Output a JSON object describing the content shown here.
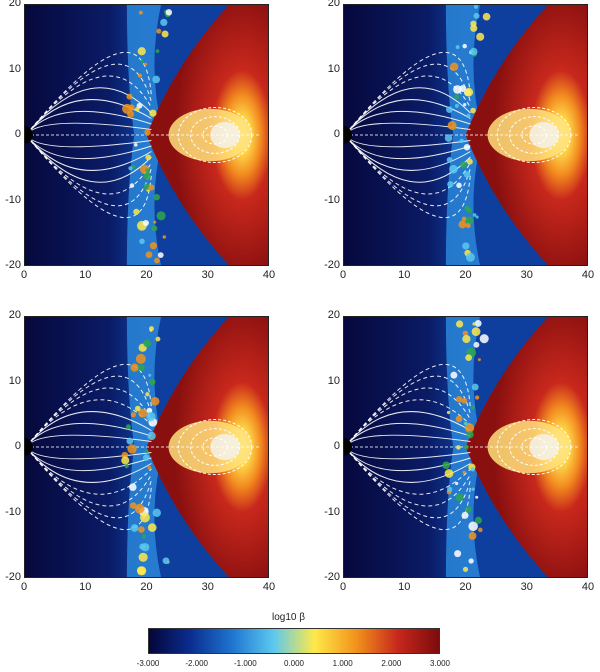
{
  "panels": [
    {
      "id": "top-left"
    },
    {
      "id": "top-right"
    },
    {
      "id": "bottom-left"
    },
    {
      "id": "bottom-right"
    }
  ],
  "x_ticks": [
    "0",
    "10",
    "20",
    "30",
    "40"
  ],
  "y_ticks": [
    "20",
    "10",
    "0",
    "-10",
    "-20"
  ],
  "colorbar": {
    "label": "log10 β",
    "tick_labels": [
      "-3.000",
      "-2.000",
      "-1.000",
      "0.000",
      "1.000",
      "2.000",
      "3.000"
    ],
    "colors": [
      "#05063a",
      "#0b2d8f",
      "#1e74d0",
      "#5cc8ef",
      "#ffe94a",
      "#f2931c",
      "#c8281c",
      "#7d0c0c"
    ]
  }
}
